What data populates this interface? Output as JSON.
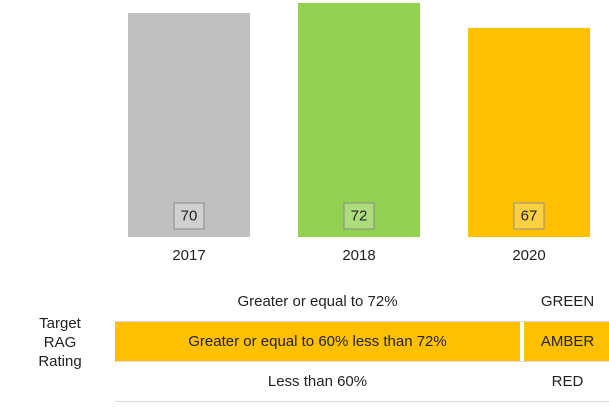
{
  "chart_data": {
    "type": "bar",
    "categories": [
      "2017",
      "2018",
      "2020"
    ],
    "values": [
      70,
      72,
      67
    ],
    "colors": [
      "#c0c0c0",
      "#92d050",
      "#ffc000"
    ],
    "ylim": [
      25,
      72
    ]
  },
  "rag_table": {
    "label": "Target RAG Rating",
    "rows": [
      [
        "Greater or equal to 72%",
        "GREEN"
      ],
      [
        "Greater or equal to 60% less than 72%",
        "AMBER"
      ],
      [
        "Less than 60%",
        "RED"
      ]
    ],
    "row_colors": [
      "#ffffff",
      "#ffc000",
      "#ffffff"
    ]
  }
}
